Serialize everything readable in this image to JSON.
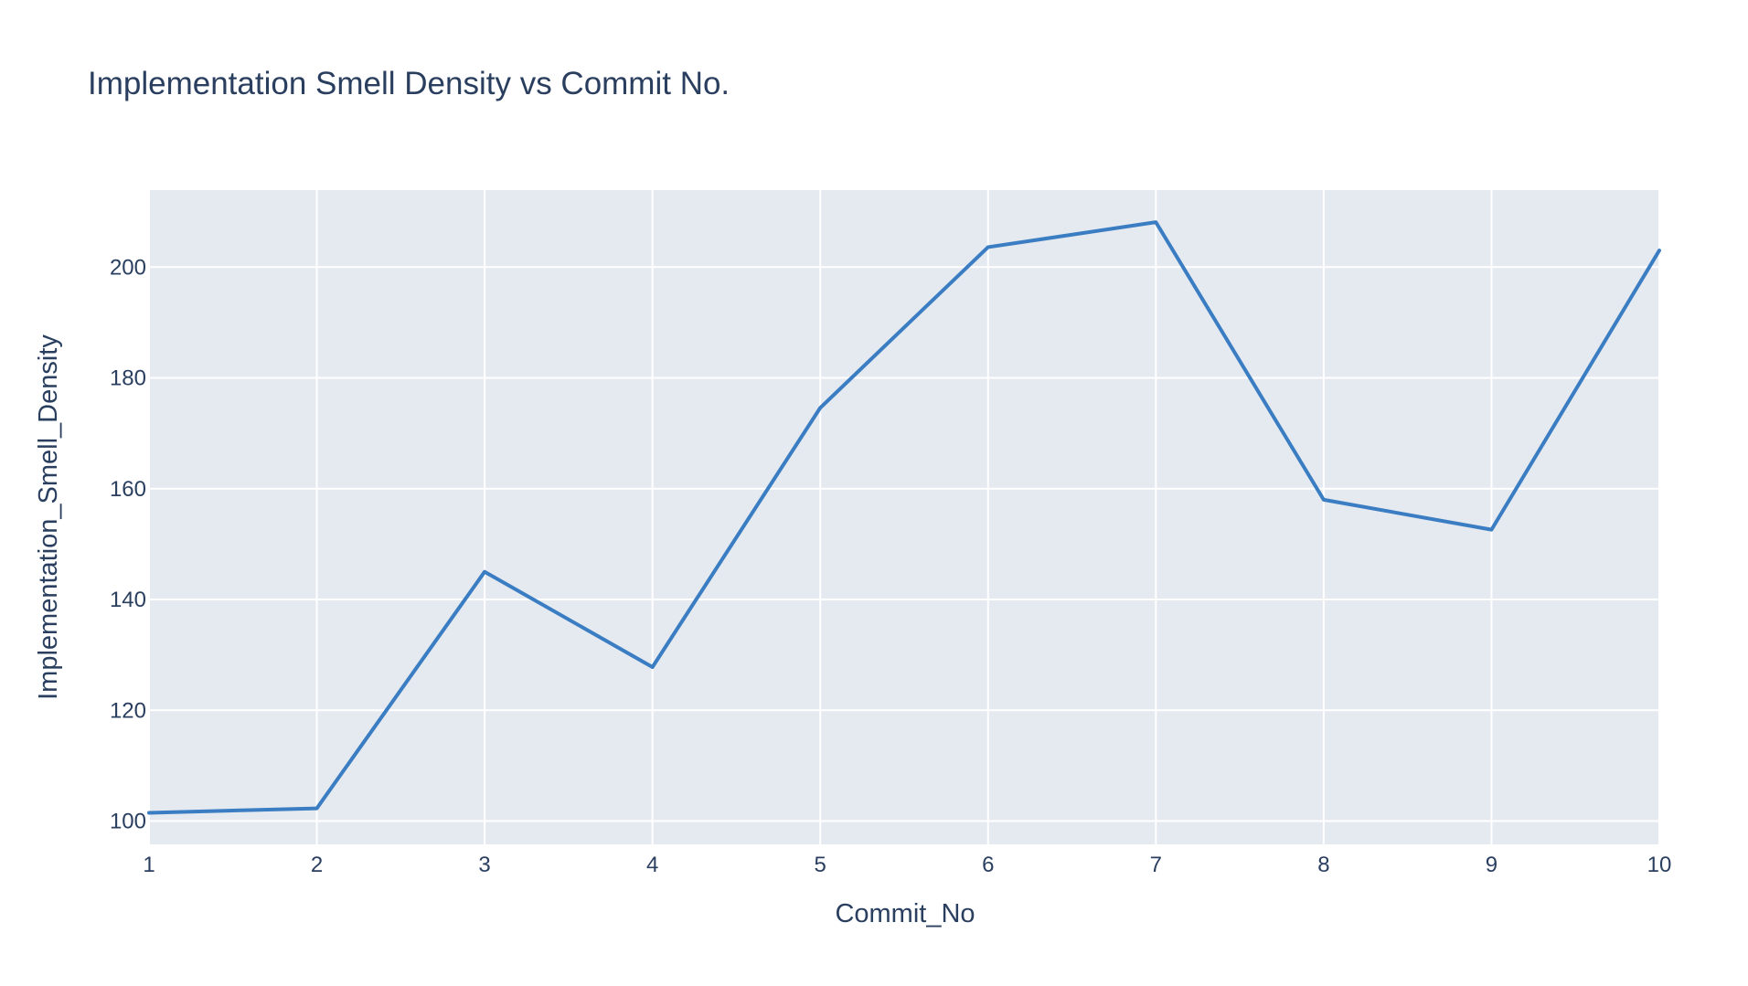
{
  "chart_data": {
    "type": "line",
    "title": "Implementation Smell Density vs Commit No.",
    "xlabel": "Commit_No",
    "ylabel": "Implementation_Smell_Density",
    "x": [
      1,
      2,
      3,
      4,
      5,
      6,
      7,
      8,
      9,
      10
    ],
    "series": [
      {
        "values": [
          101.5,
          102.3,
          145.0,
          127.8,
          174.6,
          203.6,
          208.1,
          158.0,
          152.6,
          203.0
        ],
        "color": "#3a7dc2"
      }
    ],
    "xlim": [
      1,
      10
    ],
    "ylim": [
      95.8,
      213.9
    ],
    "xticks": [
      1,
      2,
      3,
      4,
      5,
      6,
      7,
      8,
      9,
      10
    ],
    "yticks": [
      100,
      120,
      140,
      160,
      180,
      200
    ],
    "grid": true,
    "legend": false,
    "colors": {
      "plot_background": "#e5e9f0",
      "grid": "#ffffff",
      "text": "#2a3f5f"
    }
  }
}
